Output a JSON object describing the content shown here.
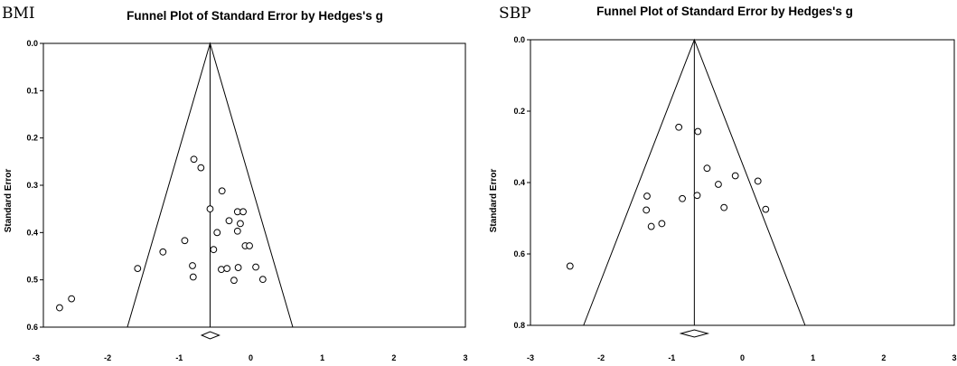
{
  "chart_data": [
    {
      "type": "scatter",
      "panel_label": "BMI",
      "title": "Funnel Plot of Standard Error by Hedges's g",
      "xlabel": "",
      "ylabel": "Standard Error",
      "xlim": [
        -3,
        3
      ],
      "ylim": [
        0.0,
        0.6
      ],
      "y_inverted": true,
      "x_ticks": [
        "-3",
        "-2",
        "-1",
        "0",
        "1",
        "2",
        "3"
      ],
      "y_ticks": [
        "0.0",
        "0.1",
        "0.2",
        "0.3",
        "0.4",
        "0.5",
        "0.6"
      ],
      "pooled_effect": -0.63,
      "pooled_ci": [
        -0.75,
        -0.5
      ],
      "points": [
        {
          "x": -0.86,
          "y": 0.245
        },
        {
          "x": -0.76,
          "y": 0.263
        },
        {
          "x": -0.46,
          "y": 0.312
        },
        {
          "x": -0.63,
          "y": 0.35
        },
        {
          "x": -0.24,
          "y": 0.356
        },
        {
          "x": -0.16,
          "y": 0.356
        },
        {
          "x": -0.36,
          "y": 0.375
        },
        {
          "x": -0.2,
          "y": 0.381
        },
        {
          "x": -0.24,
          "y": 0.397
        },
        {
          "x": -0.53,
          "y": 0.4
        },
        {
          "x": -0.99,
          "y": 0.417
        },
        {
          "x": -0.13,
          "y": 0.428
        },
        {
          "x": -0.07,
          "y": 0.428
        },
        {
          "x": -0.58,
          "y": 0.436
        },
        {
          "x": -1.3,
          "y": 0.441
        },
        {
          "x": -1.66,
          "y": 0.476
        },
        {
          "x": -0.88,
          "y": 0.47
        },
        {
          "x": -0.47,
          "y": 0.478
        },
        {
          "x": -0.39,
          "y": 0.476
        },
        {
          "x": -0.23,
          "y": 0.474
        },
        {
          "x": 0.02,
          "y": 0.473
        },
        {
          "x": -0.87,
          "y": 0.494
        },
        {
          "x": -0.29,
          "y": 0.501
        },
        {
          "x": 0.12,
          "y": 0.499
        },
        {
          "x": -2.6,
          "y": 0.54
        },
        {
          "x": -2.77,
          "y": 0.559
        }
      ]
    },
    {
      "type": "scatter",
      "panel_label": "SBP",
      "title": "Funnel Plot of Standard Error by Hedges's g",
      "xlabel": "",
      "ylabel": "Standard Error",
      "xlim": [
        -3,
        3
      ],
      "ylim": [
        0.0,
        0.8
      ],
      "y_inverted": true,
      "x_ticks": [
        "-3",
        "-2",
        "-1",
        "0",
        "1",
        "2",
        "3"
      ],
      "y_ticks": [
        "0.0",
        "0.2",
        "0.4",
        "0.6",
        "0.8"
      ],
      "pooled_effect": -0.68,
      "pooled_ci": [
        -0.87,
        -0.49
      ],
      "points": [
        {
          "x": -0.9,
          "y": 0.245
        },
        {
          "x": -0.63,
          "y": 0.257
        },
        {
          "x": -0.5,
          "y": 0.36
        },
        {
          "x": -0.1,
          "y": 0.381
        },
        {
          "x": 0.22,
          "y": 0.396
        },
        {
          "x": -0.34,
          "y": 0.405
        },
        {
          "x": -1.35,
          "y": 0.438
        },
        {
          "x": -0.64,
          "y": 0.436
        },
        {
          "x": -0.85,
          "y": 0.445
        },
        {
          "x": -0.26,
          "y": 0.47
        },
        {
          "x": 0.33,
          "y": 0.475
        },
        {
          "x": -1.36,
          "y": 0.477
        },
        {
          "x": -1.14,
          "y": 0.515
        },
        {
          "x": -1.29,
          "y": 0.523
        },
        {
          "x": -2.44,
          "y": 0.634
        }
      ]
    }
  ]
}
